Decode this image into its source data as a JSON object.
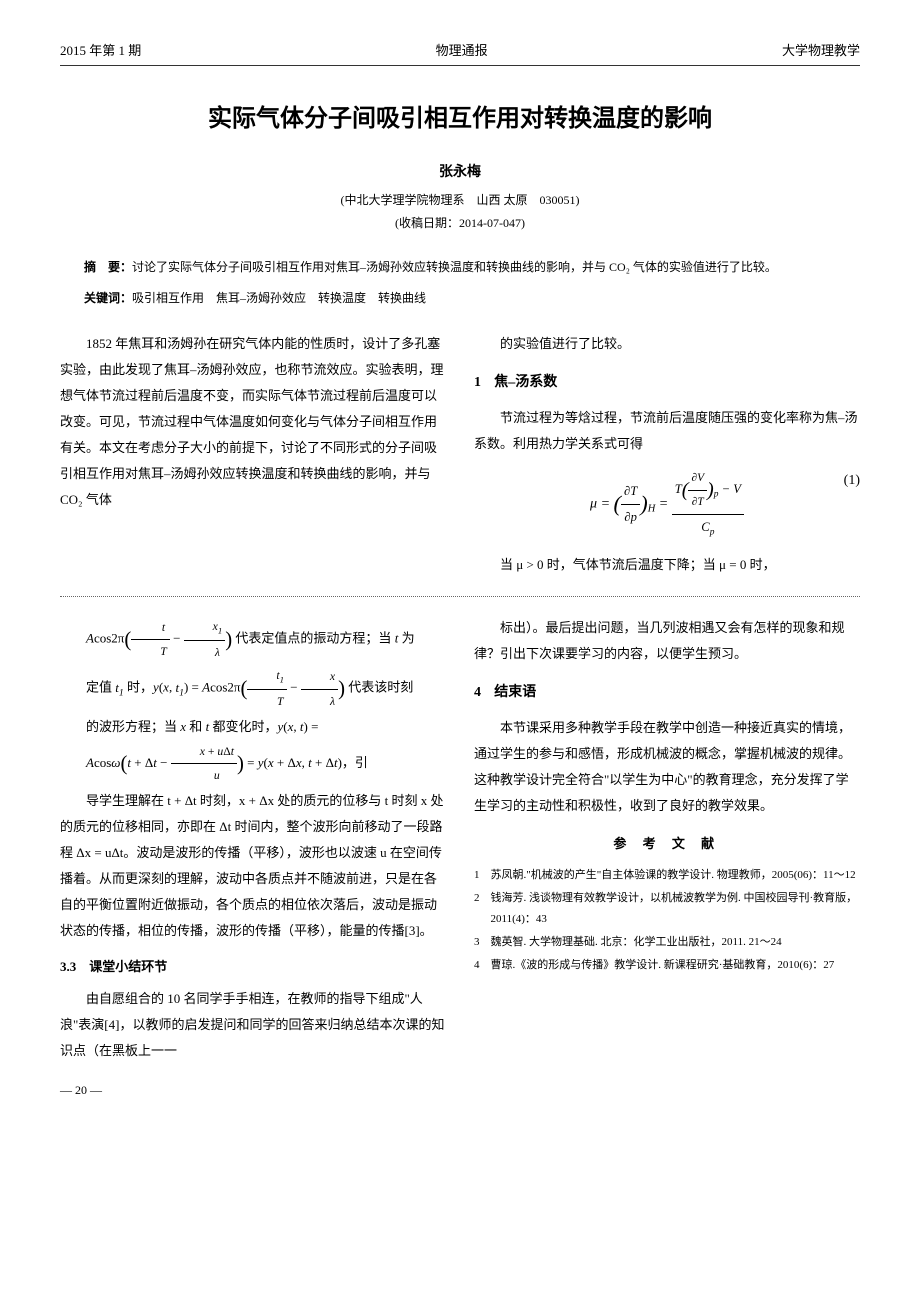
{
  "header": {
    "left": "2015 年第 1 期",
    "center": "物理通报",
    "right": "大学物理教学"
  },
  "title": "实际气体分子间吸引相互作用对转换温度的影响",
  "author": "张永梅",
  "affiliation": "(中北大学理学院物理系　山西 太原　030051)",
  "received": "(收稿日期：2014-07-047)",
  "abstract": {
    "label": "摘　要：",
    "text": "讨论了实际气体分子间吸引相互作用对焦耳–汤姆孙效应转换温度和转换曲线的影响，并与 CO₂ 气体的实验值进行了比较。"
  },
  "keywords": {
    "label": "关键词：",
    "text": "吸引相互作用　焦耳–汤姆孙效应　转换温度　转换曲线"
  },
  "upper_left_col": {
    "p1": "1852 年焦耳和汤姆孙在研究气体内能的性质时，设计了多孔塞实验，由此发现了焦耳–汤姆孙效应，也称节流效应。实验表明，理想气体节流过程前后温度不变，而实际气体节流过程前后温度可以改变。可见，节流过程中气体温度如何变化与气体分子间相互作用有关。本文在考虑分子大小的前提下，讨论了不同形式的分子间吸引相互作用对焦耳–汤姆孙效应转换温度和转换曲线的影响，并与 CO₂ 气体"
  },
  "upper_right_col": {
    "p1": "的实验值进行了比较。",
    "sec1_num": "1",
    "sec1_title": "焦–汤系数",
    "p2": "节流过程为等焓过程，节流前后温度随压强的变化率称为焦–汤系数。利用热力学关系式可得",
    "eq1_text": "μ = (∂T/∂p)_H = [T(∂V/∂T)_p − V] / C_p",
    "eq1_num": "(1)",
    "p3": "当 μ > 0 时，气体节流后温度下降；当 μ = 0 时，"
  },
  "lower_left_col": {
    "eq_line1": "Acos2π(t/T − x₁/λ) 代表定值点的振动方程；当 t 为",
    "eq_line2": "定值 t₁ 时，y(x, t₁) = Acos2π(t₁/T − x/λ) 代表该时刻",
    "eq_line3": "的波形方程；当 x 和 t 都变化时，y(x, t) =",
    "eq_line4": "Acosω(t + Δt − (x + uΔt)/u) = y(x + Δx, t + Δt)，引",
    "p1": "导学生理解在 t + Δt 时刻，x + Δx 处的质元的位移与 t 时刻 x 处的质元的位移相同，亦即在 Δt 时间内，整个波形向前移动了一段路程 Δx = uΔt。波动是波形的传播（平移），波形也以波速 u 在空间传播着。从而更深刻的理解，波动中各质点并不随波前进，只是在各自的平衡位置附近做振动，各个质点的相位依次落后，波动是振动状态的传播，相位的传播，波形的传播（平移），能量的传播[3]。",
    "subsec_num": "3.3",
    "subsec_title": "课堂小结环节",
    "p2": "由自愿组合的 10 名同学手手相连，在教师的指导下组成\"人浪\"表演[4]，以教师的启发提问和同学的回答来归纳总结本次课的知识点（在黑板上一一"
  },
  "lower_right_col": {
    "p1": "标出）。最后提出问题，当几列波相遇又会有怎样的现象和规律？引出下次课要学习的内容，以便学生预习。",
    "sec4_num": "4",
    "sec4_title": "结束语",
    "p2": "本节课采用多种教学手段在教学中创造一种接近真实的情境，通过学生的参与和感悟，形成机械波的概念，掌握机械波的规律。这种教学设计完全符合\"以学生为中心\"的教育理念，充分发挥了学生学习的主动性和积极性，收到了良好的教学效果。",
    "ref_heading": "参 考 文 献",
    "refs": [
      {
        "n": "1",
        "text": "苏凤朝.\"机械波的产生\"自主体验课的教学设计. 物理教师，2005(06)：11～12"
      },
      {
        "n": "2",
        "text": "钱海芳. 浅谈物理有效教学设计，以机械波教学为例. 中国校园导刊·教育版，2011(4)：43"
      },
      {
        "n": "3",
        "text": "魏英智. 大学物理基础. 北京：化学工业出版社，2011. 21～24"
      },
      {
        "n": "4",
        "text": "曹琼.《波的形成与传播》教学设计. 新课程研究·基础教育，2010(6)：27"
      }
    ]
  },
  "page_number": "— 20 —"
}
